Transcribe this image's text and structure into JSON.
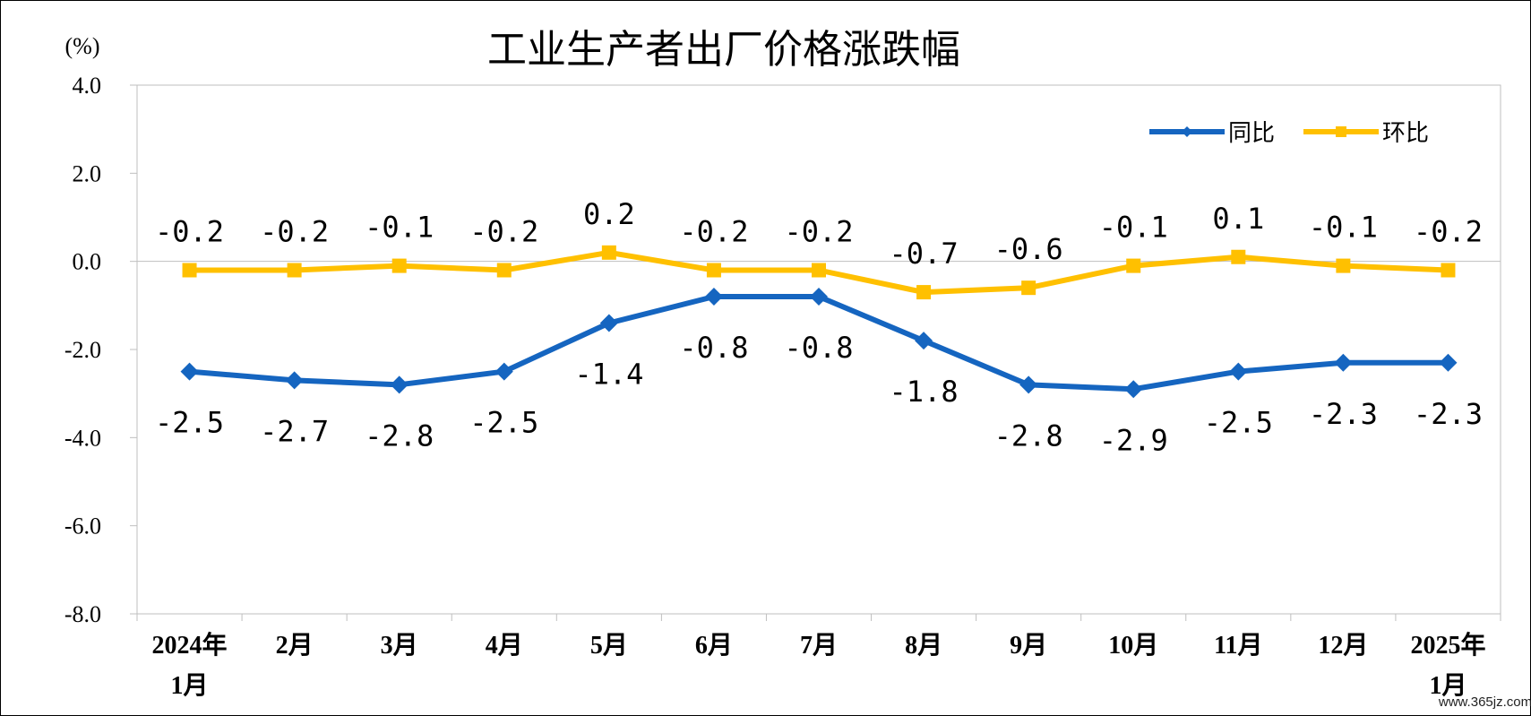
{
  "chart_data": {
    "type": "line",
    "title": "工业生产者出厂价格涨跌幅",
    "ylabel": "(%)",
    "ylim": [
      -8.0,
      4.0
    ],
    "yticks": [
      "4.0",
      "2.0",
      "0.0",
      "-2.0",
      "-4.0",
      "-6.0",
      "-8.0"
    ],
    "categories": [
      [
        "2024年",
        "1月"
      ],
      [
        "2月"
      ],
      [
        "3月"
      ],
      [
        "4月"
      ],
      [
        "5月"
      ],
      [
        "6月"
      ],
      [
        "7月"
      ],
      [
        "8月"
      ],
      [
        "9月"
      ],
      [
        "10月"
      ],
      [
        "11月"
      ],
      [
        "12月"
      ],
      [
        "2025年",
        "1月"
      ]
    ],
    "series": [
      {
        "name": "同比",
        "color": "#1565C0",
        "marker": "diamond",
        "values": [
          -2.5,
          -2.7,
          -2.8,
          -2.5,
          -1.4,
          -0.8,
          -0.8,
          -1.8,
          -2.8,
          -2.9,
          -2.5,
          -2.3,
          -2.3
        ],
        "labels": [
          "-2.5",
          "-2.7",
          "-2.8",
          "-2.5",
          "-1.4",
          "-0.8",
          "-0.8",
          "-1.8",
          "-2.8",
          "-2.9",
          "-2.5",
          "-2.3",
          "-2.3"
        ]
      },
      {
        "name": "环比",
        "color": "#FFC000",
        "marker": "square",
        "values": [
          -0.2,
          -0.2,
          -0.1,
          -0.2,
          0.2,
          -0.2,
          -0.2,
          -0.7,
          -0.6,
          -0.1,
          0.1,
          -0.1,
          -0.2
        ],
        "labels": [
          "-0.2",
          "-0.2",
          "-0.1",
          "-0.2",
          "0.2",
          "-0.2",
          "-0.2",
          "-0.7",
          "-0.6",
          "-0.1",
          "0.1",
          "-0.1",
          "-0.2"
        ]
      }
    ],
    "legend": "top-right",
    "grid": false
  },
  "watermark": "www.365jz.com"
}
